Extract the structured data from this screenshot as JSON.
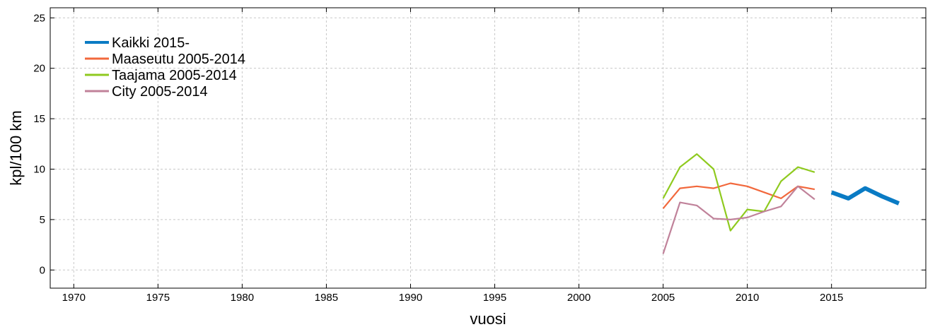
{
  "chart_data": {
    "type": "line",
    "xlabel": "vuosi",
    "ylabel": "kpl/100 km",
    "xlim": [
      1968.6,
      2020.6
    ],
    "ylim": [
      -1.8,
      26.0
    ],
    "xticks": [
      1970,
      1975,
      1980,
      1985,
      1990,
      1995,
      2000,
      2005,
      2010,
      2015
    ],
    "yticks": [
      0,
      5,
      10,
      15,
      20,
      25
    ],
    "grid": true,
    "legend_position": "top-left",
    "series": [
      {
        "name": "Kaikki 2015-",
        "color": "#0a7bc4",
        "x": [
          2015,
          2016,
          2017,
          2018,
          2019
        ],
        "y": [
          7.7,
          7.1,
          8.1,
          7.3,
          6.6
        ]
      },
      {
        "name": "Maaseutu 2005-2014",
        "color": "#f2683c",
        "x": [
          2005,
          2006,
          2007,
          2008,
          2009,
          2010,
          2011,
          2012,
          2013,
          2014
        ],
        "y": [
          6.1,
          8.1,
          8.3,
          8.1,
          8.6,
          8.3,
          7.7,
          7.1,
          8.3,
          8.0
        ]
      },
      {
        "name": "Taajama 2005-2014",
        "color": "#8fca1f",
        "x": [
          2005,
          2006,
          2007,
          2008,
          2009,
          2010,
          2011,
          2012,
          2013,
          2014
        ],
        "y": [
          7.1,
          10.2,
          11.5,
          10.0,
          3.9,
          6.0,
          5.8,
          8.8,
          10.2,
          9.7
        ]
      },
      {
        "name": "City 2005-2014",
        "color": "#c0829a",
        "x": [
          2005,
          2006,
          2007,
          2008,
          2009,
          2010,
          2011,
          2012,
          2013,
          2014
        ],
        "y": [
          1.6,
          6.7,
          6.4,
          5.1,
          5.0,
          5.2,
          5.8,
          6.3,
          8.3,
          7.0
        ]
      }
    ]
  }
}
